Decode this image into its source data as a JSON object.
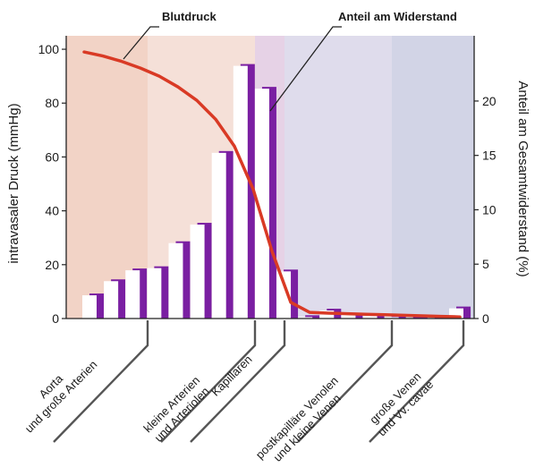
{
  "chart_data": {
    "type": "bar",
    "title": "",
    "ylabel_left": "intravasaler Druck (mmHg)",
    "ylabel_right": "Anteil am Gesamtwiderstand (%)",
    "ylim_left": [
      0,
      105
    ],
    "ylim_right": [
      0,
      26
    ],
    "yticks_left": [
      "0",
      "20",
      "40",
      "60",
      "80",
      "100"
    ],
    "yticks_right": [
      "0",
      "5",
      "10",
      "15",
      "20"
    ],
    "grid": false,
    "regions": [
      {
        "label_lines": [
          "Aorta",
          "und große Arterien"
        ],
        "color": "#f2d3c6"
      },
      {
        "label_lines": [
          "kleine Arterien",
          "und Arteriolen"
        ],
        "color": "#f5e0d8"
      },
      {
        "label_lines": [
          "Kapillaren"
        ],
        "color": "#e6d2e6"
      },
      {
        "label_lines": [
          "postkapilläre Venolen",
          "und kleine Venen"
        ],
        "color": "#dfdcec"
      },
      {
        "label_lines": [
          "große Venen",
          "und Vv. cavae"
        ],
        "color": "#d2d4e6"
      }
    ],
    "series": [
      {
        "name": "Blutdruck",
        "color": "#d93a25",
        "x": [
          0.0,
          0.05,
          0.1,
          0.15,
          0.2,
          0.25,
          0.3,
          0.35,
          0.4,
          0.45,
          0.5,
          0.55,
          0.6,
          0.65,
          0.7,
          0.75,
          0.8,
          0.85,
          0.9,
          0.95,
          1.0
        ],
        "values": [
          99,
          97.5,
          95.5,
          93,
          90,
          86,
          81,
          74,
          64,
          48,
          25,
          6,
          2.3,
          2,
          1.8,
          1.6,
          1.4,
          1.2,
          1.0,
          0.8,
          0.6
        ]
      },
      {
        "name": "Anteil am Widerstand",
        "color": "#7a1fa2",
        "values": [
          2.3,
          3.6,
          4.6,
          4.8,
          7.1,
          8.8,
          15.4,
          23.4,
          21.3,
          4.5,
          0.3,
          0.9,
          0.5,
          0.4,
          0.3,
          0.2,
          0.2,
          1.1
        ]
      }
    ],
    "annotations": [
      "Blutdruck",
      "Anteil am Widerstand"
    ]
  }
}
